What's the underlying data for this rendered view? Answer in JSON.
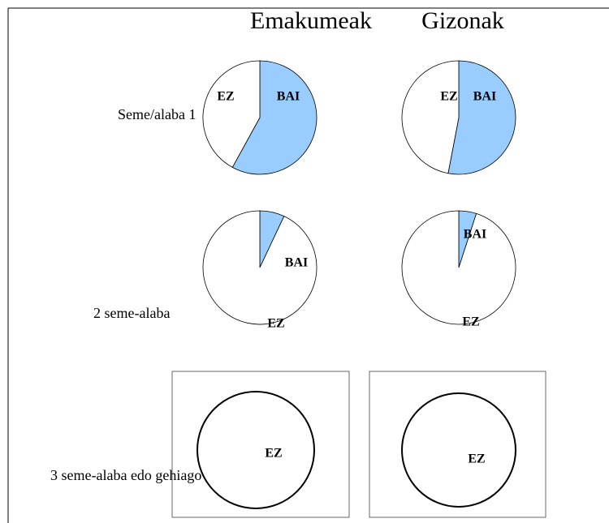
{
  "columns": [
    "Emakumeak",
    "Gizonak"
  ],
  "rows": [
    "Seme/alaba 1",
    "2 seme-alaba",
    "3 seme-alaba edo gehiago"
  ],
  "chart_data": [
    {
      "type": "pie",
      "categories": [
        "BAI",
        "EZ"
      ],
      "values": [
        58,
        42
      ],
      "colors": [
        "#99ccff",
        "#ffffff"
      ]
    },
    {
      "type": "pie",
      "categories": [
        "BAI",
        "EZ"
      ],
      "values": [
        53,
        47
      ],
      "colors": [
        "#99ccff",
        "#ffffff"
      ]
    },
    {
      "type": "pie",
      "categories": [
        "BAI",
        "EZ"
      ],
      "values": [
        7,
        93
      ],
      "colors": [
        "#99ccff",
        "#ffffff"
      ]
    },
    {
      "type": "pie",
      "categories": [
        "BAI",
        "EZ"
      ],
      "values": [
        5,
        95
      ],
      "colors": [
        "#99ccff",
        "#ffffff"
      ]
    },
    {
      "type": "pie",
      "categories": [
        "EZ"
      ],
      "values": [
        100
      ],
      "colors": [
        "#ffffff"
      ]
    },
    {
      "type": "pie",
      "categories": [
        "EZ"
      ],
      "values": [
        100
      ],
      "colors": [
        "#ffffff"
      ]
    }
  ]
}
